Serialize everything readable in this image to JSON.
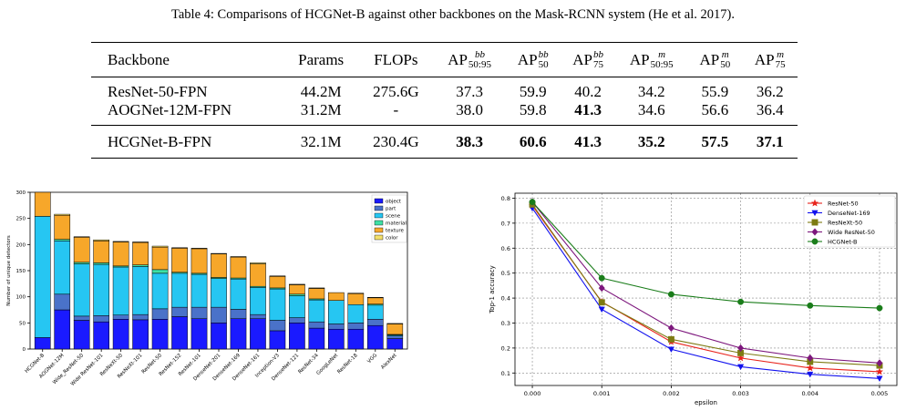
{
  "caption": "Table 4: Comparisons of HCGNet-B against other backbones on the Mask-RCNN system (He et al. 2017).",
  "table": {
    "headers": [
      {
        "label": "Backbone"
      },
      {
        "label": "Params"
      },
      {
        "label": "FLOPs"
      },
      {
        "base": "AP",
        "sup": "bb",
        "sub": "50:95"
      },
      {
        "base": "AP",
        "sup": "bb",
        "sub": "50"
      },
      {
        "base": "AP",
        "sup": "bb",
        "sub": "75"
      },
      {
        "base": "AP",
        "sup": "m",
        "sub": "50:95"
      },
      {
        "base": "AP",
        "sup": "m",
        "sub": "50"
      },
      {
        "base": "AP",
        "sup": "m",
        "sub": "75"
      }
    ],
    "rows": [
      {
        "cells": [
          "ResNet-50-FPN",
          "44.2M",
          "275.6G",
          "37.3",
          "59.9",
          "40.2",
          "34.2",
          "55.9",
          "36.2"
        ],
        "bold": []
      },
      {
        "cells": [
          "AOGNet-12M-FPN",
          "31.2M",
          "-",
          "38.0",
          "59.8",
          "41.3",
          "34.6",
          "56.6",
          "36.4"
        ],
        "bold": [
          5
        ]
      },
      {
        "cells": [
          "HCGNet-B-FPN",
          "32.1M",
          "230.4G",
          "38.3",
          "60.6",
          "41.3",
          "35.2",
          "57.5",
          "37.1"
        ],
        "bold": [
          3,
          4,
          5,
          6,
          7,
          8
        ]
      }
    ]
  },
  "chart_data": [
    {
      "type": "bar",
      "stacked": true,
      "ylabel": "Number of unique detectors",
      "xlabel": "",
      "ylim": [
        0,
        300
      ],
      "yticks": [
        0,
        50,
        100,
        150,
        200,
        250,
        300
      ],
      "grid": false,
      "legend_position": "top-right",
      "categories": [
        "HCGNet-B",
        "AOGNet-12M",
        "Wide_ResNet-50",
        "Wide ResNet-101",
        "ResNeXt-50",
        "ResNeXt-101",
        "ResNet-50",
        "ResNet-152",
        "ResNet-101",
        "DenseNet-201",
        "DenseNet-169",
        "DenseNet-161",
        "Inception-V3",
        "DenseNet-121",
        "ResNet-34",
        "GoogLeNet",
        "ResNet-18",
        "VGG",
        "AlexNet"
      ],
      "series": [
        {
          "name": "object",
          "color": "#1a1aff",
          "values": [
            22,
            75,
            55,
            52,
            57,
            56,
            57,
            62,
            58,
            50,
            58,
            58,
            35,
            50,
            40,
            38,
            38,
            45,
            20
          ]
        },
        {
          "name": "part",
          "color": "#4a72c9",
          "values": [
            0,
            30,
            8,
            12,
            8,
            10,
            20,
            18,
            22,
            30,
            18,
            8,
            20,
            10,
            12,
            10,
            12,
            12,
            5
          ]
        },
        {
          "name": "scene",
          "color": "#26c6f2",
          "values": [
            232,
            102,
            100,
            98,
            92,
            92,
            68,
            65,
            63,
            55,
            58,
            52,
            60,
            42,
            42,
            45,
            35,
            27,
            2
          ]
        },
        {
          "name": "material",
          "color": "#3ee0a5",
          "values": [
            0,
            3,
            3,
            3,
            2,
            3,
            7,
            2,
            2,
            2,
            2,
            2,
            2,
            3,
            2,
            0,
            0,
            2,
            1
          ]
        },
        {
          "name": "texture",
          "color": "#f7a72a",
          "values": [
            46,
            46,
            48,
            42,
            46,
            43,
            43,
            46,
            47,
            45,
            40,
            43,
            22,
            18,
            20,
            15,
            21,
            12,
            20
          ]
        },
        {
          "name": "color",
          "color": "#f3e06a",
          "values": [
            0,
            2,
            1,
            2,
            1,
            1,
            2,
            1,
            1,
            1,
            1,
            2,
            1,
            1,
            1,
            0,
            1,
            1,
            1
          ]
        }
      ]
    },
    {
      "type": "line",
      "xlabel": "epsilon",
      "ylabel": "Top-1 accuracy",
      "x": [
        0.0,
        0.001,
        0.002,
        0.003,
        0.004,
        0.005
      ],
      "xtick_labels": [
        "0.000",
        "0.001",
        "0.002",
        "0.003",
        "0.004",
        "0.005"
      ],
      "xlim": [
        -0.00025,
        0.00525
      ],
      "ylim": [
        0.05,
        0.82
      ],
      "yticks": [
        0.1,
        0.2,
        0.3,
        0.4,
        0.5,
        0.6,
        0.7,
        0.8
      ],
      "grid": true,
      "legend_position": "top-right",
      "series": [
        {
          "name": "ResNet-50",
          "color": "#e8231c",
          "marker": "star",
          "values": [
            0.77,
            0.385,
            0.225,
            0.16,
            0.12,
            0.105
          ]
        },
        {
          "name": "DenseNet-169",
          "color": "#1111ee",
          "marker": "triangle-down",
          "values": [
            0.76,
            0.355,
            0.195,
            0.125,
            0.095,
            0.078
          ]
        },
        {
          "name": "ResNeXt-50",
          "color": "#7d7b12",
          "marker": "square",
          "values": [
            0.775,
            0.383,
            0.235,
            0.18,
            0.145,
            0.13
          ]
        },
        {
          "name": "Wide ResNet-50",
          "color": "#7d177d",
          "marker": "diamond",
          "values": [
            0.785,
            0.44,
            0.28,
            0.2,
            0.16,
            0.14
          ]
        },
        {
          "name": "HCGNet-B",
          "color": "#1a7d1a",
          "marker": "circle",
          "values": [
            0.785,
            0.48,
            0.415,
            0.385,
            0.37,
            0.36
          ]
        }
      ]
    }
  ]
}
